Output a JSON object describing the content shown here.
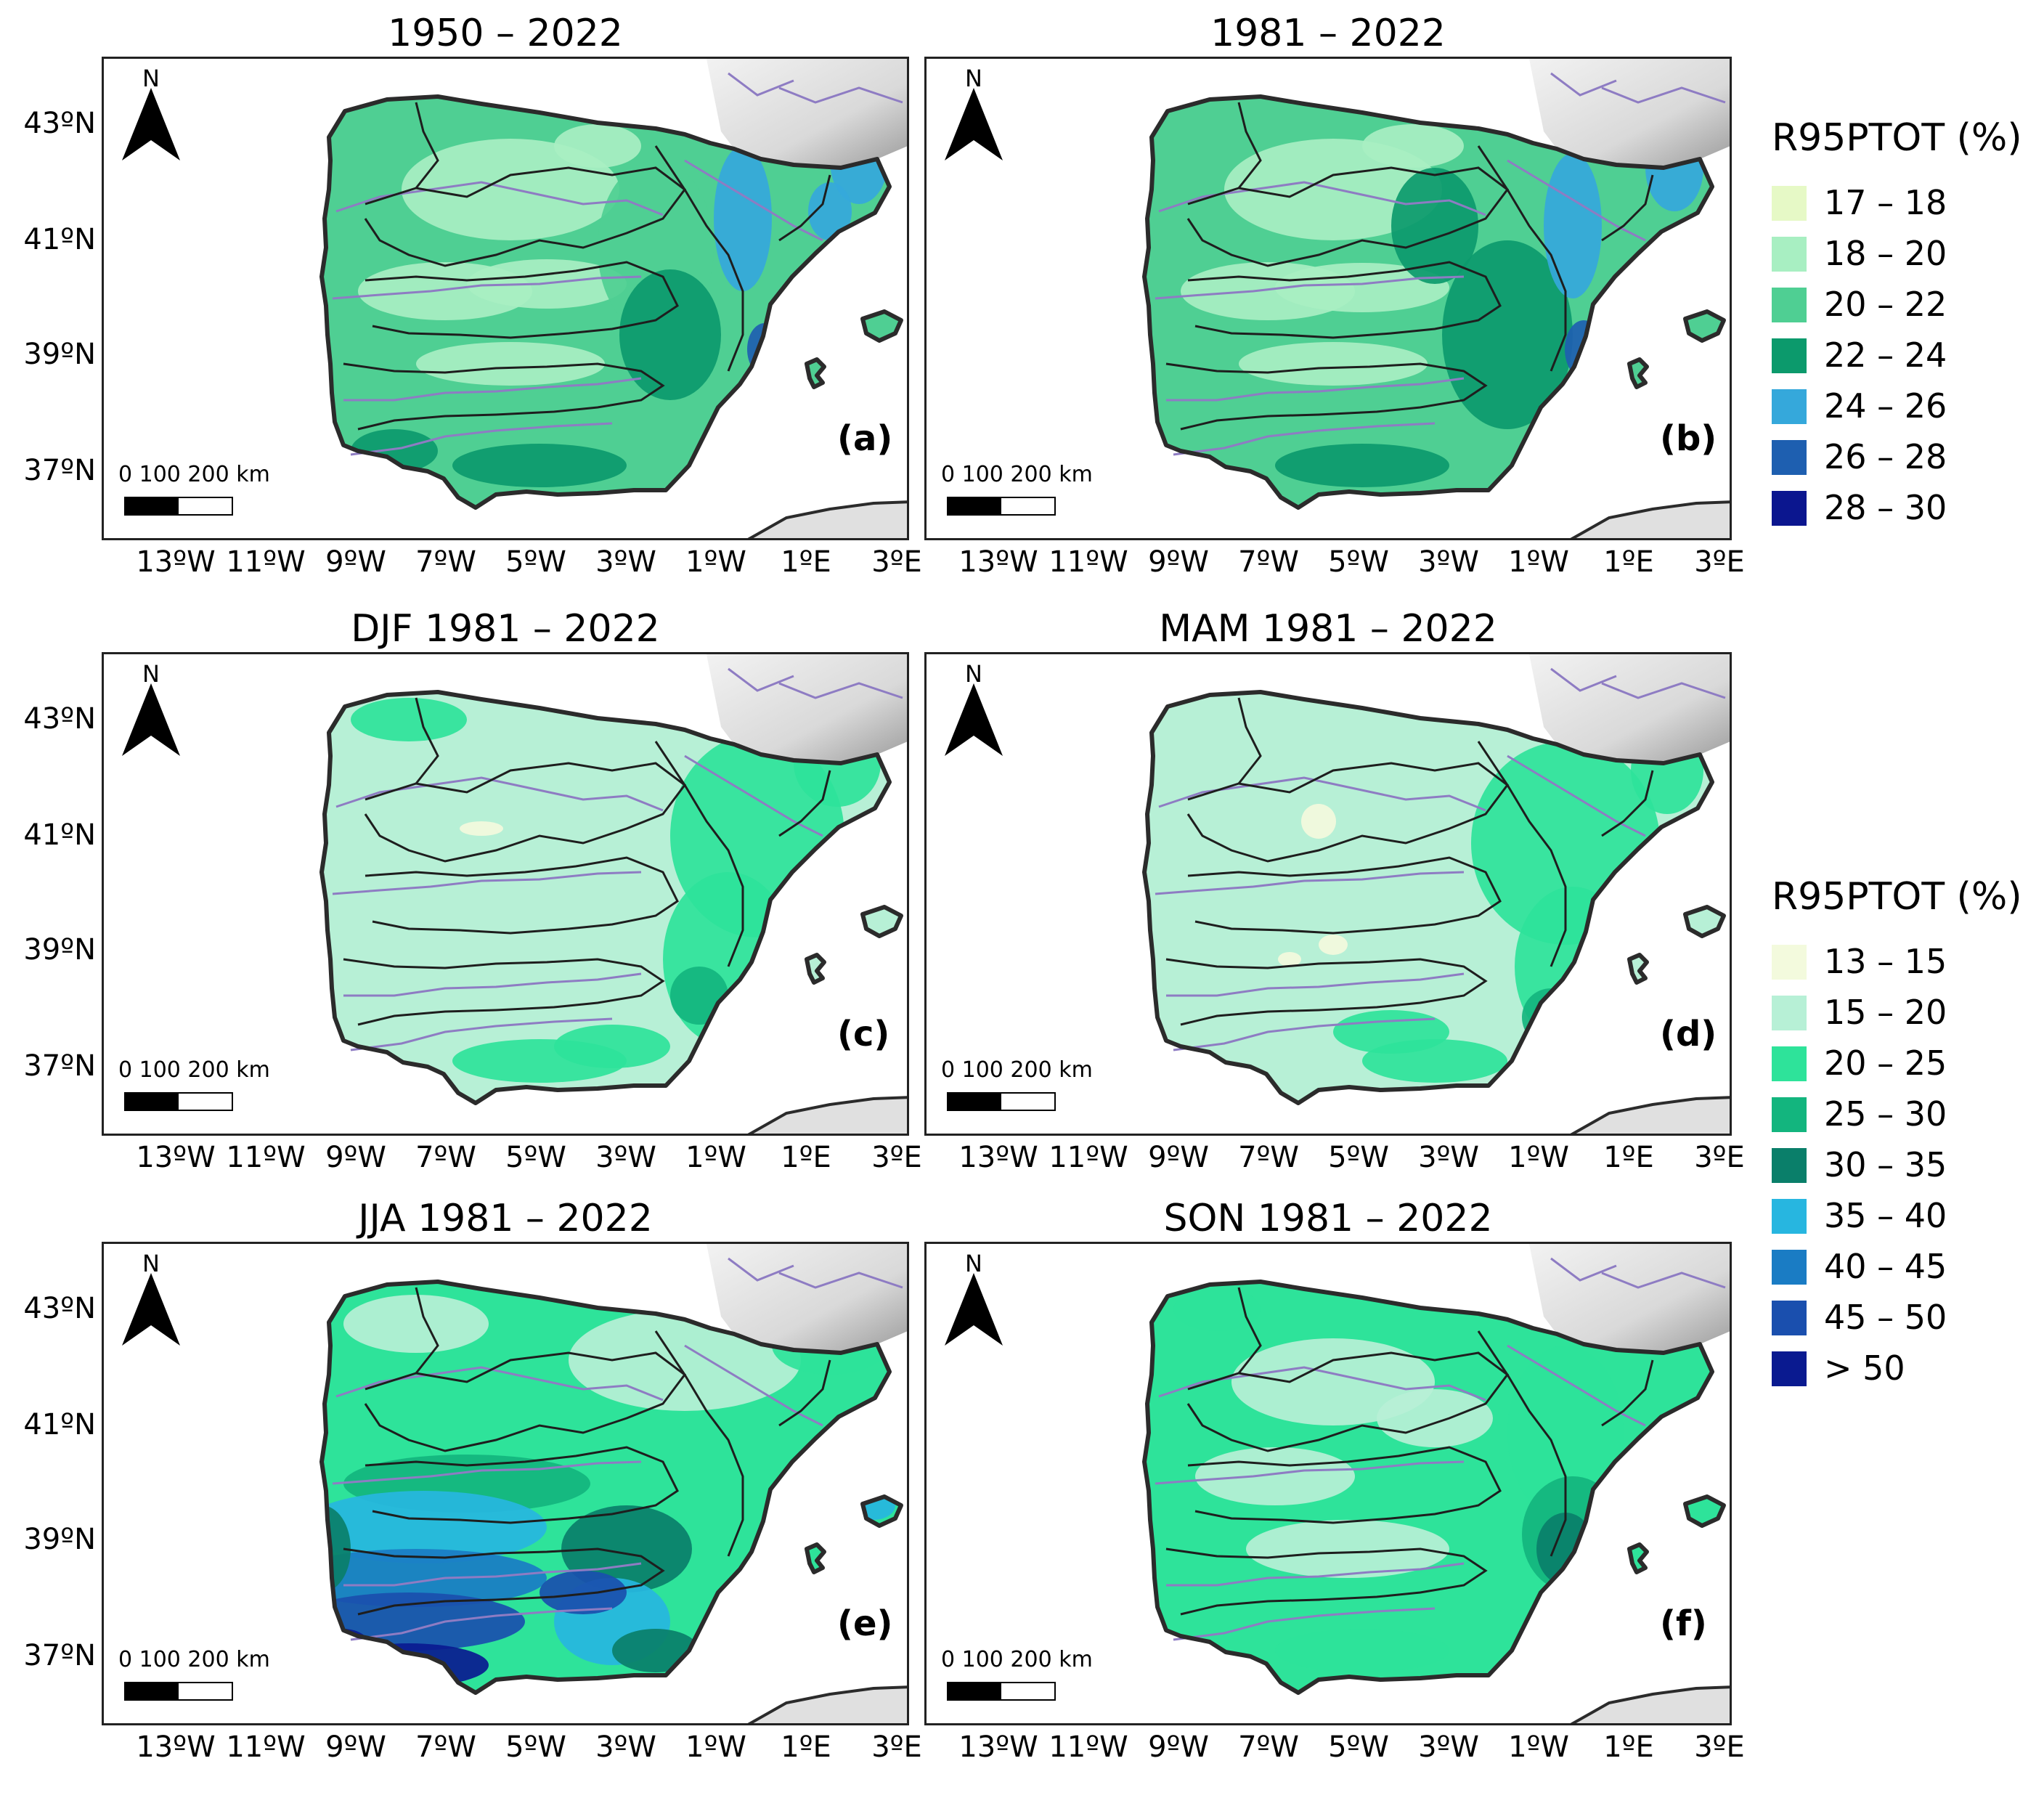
{
  "panels": [
    {
      "title": "1950 – 2022",
      "label": "(a)",
      "scheme": "annual",
      "pattern": "a"
    },
    {
      "title": "1981 – 2022",
      "label": "(b)",
      "scheme": "annual",
      "pattern": "b"
    },
    {
      "title": "DJF 1981 – 2022",
      "label": "(c)",
      "scheme": "seasonal",
      "pattern": "c"
    },
    {
      "title": "MAM 1981 – 2022",
      "label": "(d)",
      "scheme": "seasonal",
      "pattern": "d"
    },
    {
      "title": "JJA 1981 – 2022",
      "label": "(e)",
      "scheme": "seasonal",
      "pattern": "e"
    },
    {
      "title": "SON 1981 – 2022",
      "label": "(f)",
      "scheme": "seasonal",
      "pattern": "f"
    }
  ],
  "north_label": "N",
  "scale_bar_label": "0   100 200 km",
  "y_ticks": [
    "43ºN",
    "41ºN",
    "39ºN",
    "37ºN"
  ],
  "x_ticks": [
    "13ºW",
    "11ºW",
    "9ºW",
    "7ºW",
    "5ºW",
    "3ºW",
    "1ºW",
    "1ºE",
    "3ºE"
  ],
  "legends": {
    "annual": {
      "title": "R95PTOT (%)",
      "items": [
        {
          "label": "17 – 18",
          "color": "#e6f9c6"
        },
        {
          "label": "18 – 20",
          "color": "#a8efc2"
        },
        {
          "label": "20 – 22",
          "color": "#4fcf93"
        },
        {
          "label": "22 – 24",
          "color": "#0c9a6c"
        },
        {
          "label": "24 – 26",
          "color": "#35a8db"
        },
        {
          "label": "26 – 28",
          "color": "#1e5fb0"
        },
        {
          "label": "28 – 30",
          "color": "#0b168f"
        }
      ]
    },
    "seasonal": {
      "title": "R95PTOT (%)",
      "items": [
        {
          "label": "13 – 15",
          "color": "#f3fadd"
        },
        {
          "label": "15 – 20",
          "color": "#b7f0d6"
        },
        {
          "label": "20 – 25",
          "color": "#2ee39a"
        },
        {
          "label": "25 – 30",
          "color": "#13b57e"
        },
        {
          "label": "30 – 35",
          "color": "#0a7f6a"
        },
        {
          "label": "35 – 40",
          "color": "#27b6e0"
        },
        {
          "label": "40 – 45",
          "color": "#1a7cc4"
        },
        {
          "label": "45 – 50",
          "color": "#1a4fae"
        },
        {
          "label": "> 50",
          "color": "#0a1a90"
        }
      ]
    }
  },
  "colors": {
    "ocean": "#ffffff",
    "france_relief": "#d9d9d9",
    "africa": "#e0e0e0",
    "coast_border": "#2b2b2b",
    "basins": "#1e1e1e",
    "rivers": "#8e7cc3"
  }
}
